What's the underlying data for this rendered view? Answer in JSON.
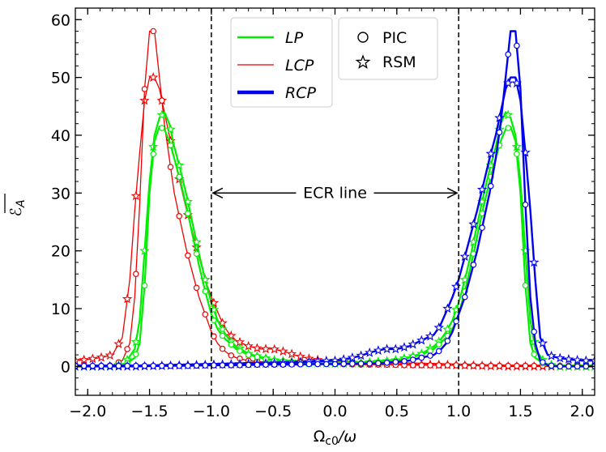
{
  "chart_data": {
    "type": "line",
    "title": "",
    "xlabel": "Ω_c0/ω",
    "ylabel": "ℰ_A (overlined)",
    "xlim": [
      -2.1,
      2.1
    ],
    "ylim": [
      -5,
      62
    ],
    "x_ticks": [
      -2.0,
      -1.5,
      -1.0,
      -0.5,
      0.0,
      0.5,
      1.0,
      1.5,
      2.0
    ],
    "x_tick_labels": [
      "−2.0",
      "−1.5",
      "−1.0",
      "−0.5",
      "0.0",
      "0.5",
      "1.0",
      "1.5",
      "2.0"
    ],
    "y_ticks": [
      0,
      10,
      20,
      30,
      40,
      50,
      60
    ],
    "y_tick_labels": [
      "0",
      "10",
      "20",
      "30",
      "40",
      "50",
      "60"
    ],
    "xlabel_main": "Ω",
    "xlabel_sub": "c0",
    "xlabel_tail": "/ω",
    "ylabel_main": "ℰ",
    "ylabel_sub": "A",
    "colors": {
      "LP": "#00ee00",
      "LCP": "#ee0000",
      "RCP": "#0000ee"
    },
    "legend_series": [
      {
        "label": "LP",
        "color": "#00ee00",
        "width": 2.5
      },
      {
        "label": "LCP",
        "color": "#ee0000",
        "width": 1.2
      },
      {
        "label": "RCP",
        "color": "#0000ee",
        "width": 4.5
      }
    ],
    "legend_markers": [
      {
        "label": "PIC",
        "marker": "circle"
      },
      {
        "label": "RSM",
        "marker": "star"
      }
    ],
    "vlines": [
      -1.0,
      1.0
    ],
    "annotation": {
      "text": "ECR line",
      "x_left": -1.0,
      "x_right": 1.0,
      "y": 30
    },
    "series": [
      {
        "name": "LP (PIC)",
        "color": "#00ee00",
        "marker": "circle",
        "width": 2.5,
        "x": [
          -2.1,
          -1.9,
          -1.8,
          -1.7,
          -1.62,
          -1.58,
          -1.54,
          -1.5,
          -1.46,
          -1.42,
          -1.38,
          -1.34,
          -1.3,
          -1.25,
          -1.2,
          -1.15,
          -1.1,
          -1.05,
          -1.0,
          -0.95,
          -0.9,
          -0.85,
          -0.8,
          -0.7,
          -0.6,
          -0.5,
          -0.4,
          -0.2,
          0.0,
          0.2,
          0.4,
          0.5,
          0.6,
          0.7,
          0.8,
          0.85,
          0.9,
          0.95,
          1.0,
          1.05,
          1.1,
          1.15,
          1.2,
          1.25,
          1.3,
          1.34,
          1.38,
          1.42,
          1.46,
          1.5,
          1.54,
          1.58,
          1.62,
          1.7,
          1.8,
          1.9,
          2.1
        ],
        "y": [
          0,
          0,
          0,
          0.2,
          1.5,
          4,
          14,
          30,
          39,
          41.5,
          41,
          39,
          36,
          32,
          27.5,
          22.5,
          17.5,
          13,
          9,
          6.5,
          5,
          4,
          3,
          2,
          1.5,
          1,
          0.8,
          0.5,
          0.5,
          0.5,
          0.8,
          1,
          1.5,
          2,
          3,
          4,
          5,
          6.5,
          9,
          13,
          17.5,
          22.5,
          27.5,
          32,
          36,
          39,
          41,
          41.5,
          39,
          30,
          14,
          4,
          1.5,
          0.2,
          0,
          0,
          0
        ]
      },
      {
        "name": "LP (RSM)",
        "color": "#00ee00",
        "marker": "star",
        "width": 2.5,
        "x": [
          -2.1,
          -1.9,
          -1.8,
          -1.7,
          -1.62,
          -1.58,
          -1.54,
          -1.5,
          -1.46,
          -1.42,
          -1.38,
          -1.34,
          -1.3,
          -1.25,
          -1.2,
          -1.15,
          -1.1,
          -1.05,
          -1.0,
          -0.95,
          -0.9,
          -0.85,
          -0.8,
          -0.7,
          -0.6,
          -0.5,
          -0.4,
          -0.2,
          0.0,
          0.2,
          0.4,
          0.5,
          0.6,
          0.7,
          0.8,
          0.85,
          0.9,
          0.95,
          1.0,
          1.05,
          1.1,
          1.15,
          1.2,
          1.25,
          1.3,
          1.34,
          1.38,
          1.42,
          1.46,
          1.5,
          1.54,
          1.58,
          1.62,
          1.7,
          1.8,
          1.9,
          2.1
        ],
        "y": [
          0,
          0,
          0,
          0.5,
          3,
          8,
          20,
          32,
          40,
          43,
          44,
          42,
          38,
          34,
          29.5,
          24.5,
          19.5,
          15,
          11,
          8,
          6,
          4.5,
          3.5,
          2.2,
          1.6,
          1.1,
          0.9,
          0.6,
          0.5,
          0.6,
          0.9,
          1.1,
          1.6,
          2.2,
          3.5,
          4.5,
          6,
          8,
          11,
          15,
          19.5,
          24.5,
          29.5,
          34,
          38,
          42,
          44,
          43,
          40,
          32,
          20,
          8,
          3,
          0.5,
          0,
          0,
          0
        ]
      },
      {
        "name": "LCP (PIC)",
        "color": "#ee0000",
        "marker": "circle",
        "width": 1.2,
        "x": [
          -2.1,
          -2.0,
          -1.9,
          -1.8,
          -1.72,
          -1.66,
          -1.62,
          -1.58,
          -1.54,
          -1.5,
          -1.46,
          -1.42,
          -1.38,
          -1.34,
          -1.3,
          -1.25,
          -1.2,
          -1.15,
          -1.1,
          -1.05,
          -1.0,
          -0.95,
          -0.9,
          -0.85,
          -0.8,
          -0.7,
          -0.6,
          -0.5,
          -0.4,
          -0.3,
          -0.2,
          0.0,
          0.2,
          0.4,
          0.6,
          0.8,
          1.0,
          1.2,
          1.4,
          1.6,
          1.8,
          2.1
        ],
        "y": [
          0,
          0,
          0,
          0.2,
          1,
          4,
          12,
          28,
          48,
          58,
          58,
          50,
          42,
          36,
          30,
          25,
          20,
          16,
          12,
          9,
          6,
          4,
          2.8,
          2,
          1.5,
          1,
          0.8,
          0.6,
          0.5,
          0.5,
          0.4,
          0.4,
          0.3,
          0.3,
          0.2,
          0.2,
          0.2,
          0.1,
          0.1,
          0.1,
          0.1,
          0.1
        ]
      },
      {
        "name": "LCP (RSM)",
        "color": "#ee0000",
        "marker": "star",
        "width": 1.2,
        "x": [
          -2.1,
          -2.0,
          -1.9,
          -1.8,
          -1.72,
          -1.66,
          -1.62,
          -1.58,
          -1.54,
          -1.5,
          -1.46,
          -1.42,
          -1.38,
          -1.34,
          -1.3,
          -1.25,
          -1.2,
          -1.15,
          -1.1,
          -1.05,
          -1.0,
          -0.95,
          -0.9,
          -0.85,
          -0.8,
          -0.7,
          -0.6,
          -0.5,
          -0.4,
          -0.3,
          -0.2,
          -0.1,
          0.0,
          0.2,
          0.4,
          0.6,
          0.8,
          1.0,
          1.2,
          1.4,
          1.6,
          1.8,
          2.1
        ],
        "y": [
          1,
          1.2,
          1.5,
          2,
          5,
          15,
          27,
          37,
          46,
          50,
          50,
          48,
          44,
          40,
          36,
          31.5,
          27,
          23,
          19,
          15,
          12,
          9.5,
          7,
          5.5,
          4.5,
          3.5,
          3,
          3,
          2.5,
          1.8,
          1.3,
          1,
          0.8,
          0.6,
          0.5,
          0.4,
          0.3,
          0.2,
          0.1,
          0,
          0,
          0,
          0
        ]
      },
      {
        "name": "RCP (PIC)",
        "color": "#0000ee",
        "marker": "circle",
        "width": 4.5,
        "x": [
          -2.1,
          -1.8,
          -1.6,
          -1.4,
          -1.2,
          -1.0,
          -0.8,
          -0.6,
          -0.4,
          -0.2,
          0.0,
          0.2,
          0.3,
          0.4,
          0.5,
          0.6,
          0.7,
          0.8,
          0.85,
          0.9,
          0.95,
          1.0,
          1.05,
          1.1,
          1.15,
          1.2,
          1.25,
          1.3,
          1.34,
          1.38,
          1.42,
          1.46,
          1.5,
          1.54,
          1.58,
          1.62,
          1.66,
          1.72,
          1.8,
          1.9,
          2.0,
          2.1
        ],
        "y": [
          0.1,
          0.1,
          0.1,
          0.1,
          0.1,
          0.2,
          0.2,
          0.3,
          0.3,
          0.4,
          0.4,
          0.5,
          0.5,
          0.6,
          0.8,
          1,
          1.5,
          2,
          2.8,
          4,
          6,
          9,
          12,
          16,
          20,
          25,
          30,
          36,
          42,
          50,
          58,
          58,
          48,
          28,
          12,
          4,
          1,
          0.2,
          0,
          0,
          0,
          0
        ]
      },
      {
        "name": "RCP (RSM)",
        "color": "#0000ee",
        "marker": "star",
        "width": 4.5,
        "x": [
          -2.1,
          -1.8,
          -1.6,
          -1.4,
          -1.2,
          -1.0,
          -0.8,
          -0.6,
          -0.4,
          -0.2,
          0.0,
          0.1,
          0.2,
          0.3,
          0.4,
          0.5,
          0.6,
          0.7,
          0.8,
          0.85,
          0.9,
          0.95,
          1.0,
          1.05,
          1.1,
          1.15,
          1.2,
          1.25,
          1.3,
          1.34,
          1.38,
          1.42,
          1.46,
          1.5,
          1.54,
          1.58,
          1.62,
          1.66,
          1.72,
          1.8,
          1.9,
          2.0,
          2.1
        ],
        "y": [
          0,
          0,
          0,
          0.1,
          0.2,
          0.3,
          0.4,
          0.5,
          0.6,
          0.8,
          1,
          1.3,
          1.8,
          2.5,
          3,
          3,
          3.5,
          4.5,
          5.5,
          7,
          9.5,
          12,
          15,
          19,
          23,
          27,
          31.5,
          36,
          40,
          44,
          48,
          50,
          50,
          46,
          37,
          27,
          15,
          5,
          2,
          1.5,
          1.2,
          1,
          1
        ]
      }
    ]
  }
}
